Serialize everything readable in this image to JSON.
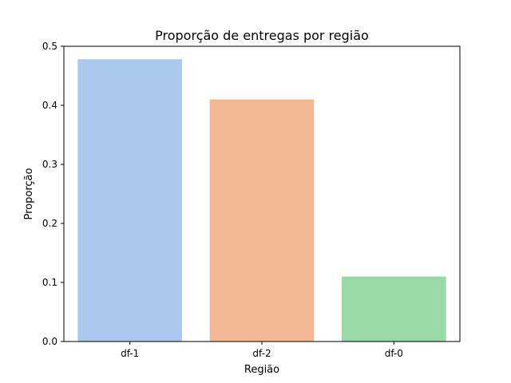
{
  "chart_data": {
    "type": "bar",
    "title": "Proporção de entregas por região",
    "xlabel": "Região",
    "ylabel": "Proporção",
    "categories": [
      "df-1",
      "df-2",
      "df-0"
    ],
    "values": [
      0.478,
      0.41,
      0.11
    ],
    "colors": [
      "#abc9ef",
      "#f1b893",
      "#99d9a7"
    ],
    "ylim": [
      0,
      0.5
    ],
    "yticks": [
      0.0,
      0.1,
      0.2,
      0.3,
      0.4,
      0.5
    ],
    "ytick_labels": [
      "0.0",
      "0.1",
      "0.2",
      "0.3",
      "0.4",
      "0.5"
    ],
    "grid": false,
    "legend": "none"
  }
}
